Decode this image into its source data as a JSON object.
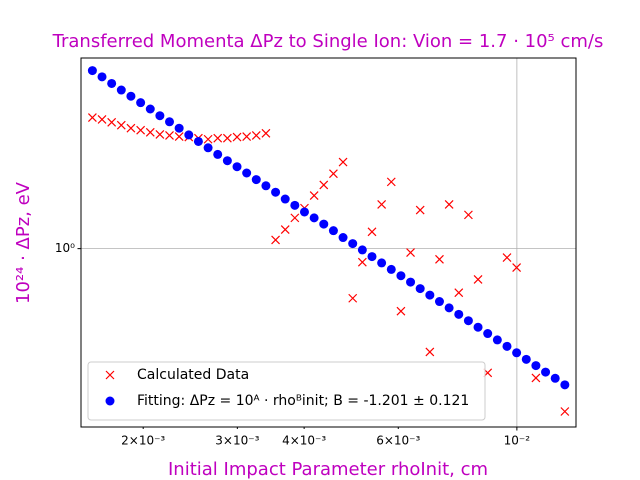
{
  "chart_data": {
    "type": "scatter",
    "title": "Transferred Momenta ΔPz to Single Ion: Vion = 1.7 · 10⁵ cm/s",
    "x_label": "Initial Impact Parameter rhoInit, cm",
    "y_label": "10²⁴ · ΔPz, eV",
    "log_x": true,
    "log_y": true,
    "grid": true,
    "legend": "lower left",
    "xlim": [
      0.00153,
      0.0129
    ],
    "ylim": [
      0.25,
      4.4
    ],
    "xticks": [
      {
        "value": 0.002,
        "label": "2×10⁻³"
      },
      {
        "value": 0.003,
        "label": "3×10⁻³"
      },
      {
        "value": 0.004,
        "label": "4×10⁻³"
      },
      {
        "value": 0.006,
        "label": "6×10⁻³"
      },
      {
        "value": 0.01,
        "label": "10⁻²"
      }
    ],
    "yticks": [
      {
        "value": 1,
        "label": "10⁰"
      }
    ],
    "x": [
      0.001607,
      0.001675,
      0.001746,
      0.00182,
      0.001897,
      0.001978,
      0.002062,
      0.002149,
      0.00224,
      0.002335,
      0.002434,
      0.002537,
      0.002645,
      0.002757,
      0.002874,
      0.002996,
      0.003123,
      0.003255,
      0.003393,
      0.003537,
      0.003687,
      0.003843,
      0.004006,
      0.004176,
      0.004353,
      0.004538,
      0.00473,
      0.004931,
      0.00514,
      0.005358,
      0.005585,
      0.005822,
      0.006069,
      0.006326,
      0.006594,
      0.006874,
      0.007165,
      0.007469,
      0.007786,
      0.008116,
      0.00846,
      0.008819,
      0.009193,
      0.009583,
      0.009989,
      0.010413,
      0.010854,
      0.011315,
      0.011795,
      0.012295
    ],
    "series": [
      {
        "name": "Calculated Data",
        "color": "#ff0000",
        "marker": "x",
        "values": [
          2.77,
          2.73,
          2.67,
          2.61,
          2.55,
          2.51,
          2.47,
          2.43,
          2.41,
          2.39,
          2.38,
          2.36,
          2.34,
          2.36,
          2.36,
          2.38,
          2.39,
          2.41,
          2.45,
          1.07,
          1.16,
          1.27,
          1.37,
          1.51,
          1.64,
          1.79,
          1.96,
          0.68,
          0.9,
          1.14,
          1.41,
          1.68,
          0.615,
          0.97,
          1.35,
          0.448,
          0.92,
          1.41,
          0.71,
          1.3,
          0.787,
          0.381,
          null,
          0.933,
          0.863,
          null,
          0.366,
          null,
          null,
          0.282
        ]
      },
      {
        "name": "Fitting: ΔPz = 10ᴬ · rhoᴮinit; B = -1.201 ± 0.121",
        "color": "#0000ff",
        "marker": "o",
        "values": [
          3.99,
          3.8,
          3.61,
          3.43,
          3.27,
          3.11,
          2.96,
          2.81,
          2.68,
          2.55,
          2.42,
          2.3,
          2.19,
          2.08,
          1.98,
          1.89,
          1.8,
          1.71,
          1.63,
          1.55,
          1.47,
          1.4,
          1.33,
          1.27,
          1.21,
          1.15,
          1.09,
          1.04,
          0.99,
          0.94,
          0.895,
          0.851,
          0.81,
          0.771,
          0.733,
          0.697,
          0.663,
          0.631,
          0.6,
          0.571,
          0.543,
          0.517,
          0.492,
          0.468,
          0.445,
          0.423,
          0.403,
          0.383,
          0.365,
          0.347
        ]
      }
    ]
  }
}
